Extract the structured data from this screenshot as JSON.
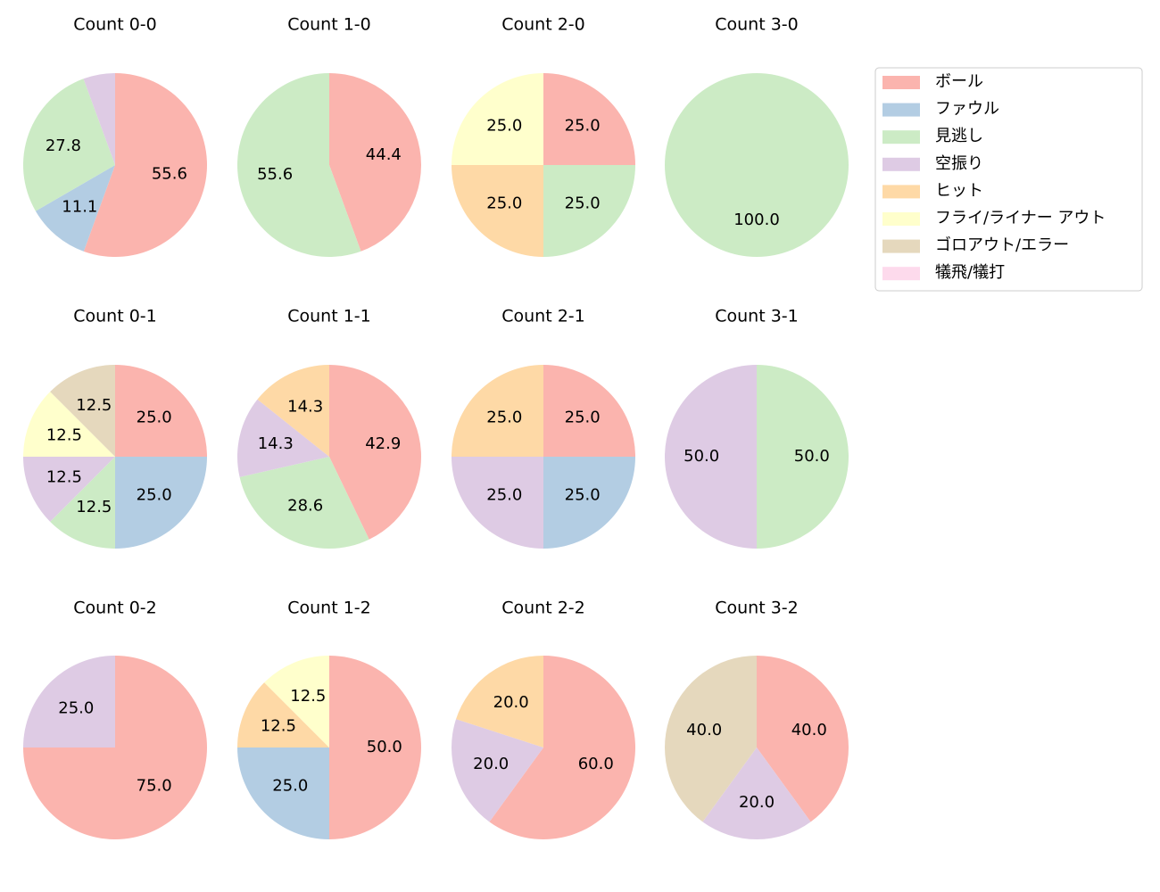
{
  "legend": {
    "labels": [
      "ボール",
      "ファウル",
      "見逃し",
      "空振り",
      "ヒット",
      "フライ/ライナー アウト",
      "ゴロアウト/エラー",
      "犠飛/犠打"
    ],
    "colors": [
      "#fbb4ae",
      "#b3cde3",
      "#ccebc5",
      "#decbe4",
      "#fed9a6",
      "#ffffcc",
      "#e5d8bd",
      "#fddaec"
    ]
  },
  "chart_data": [
    {
      "type": "pie",
      "title": "Count 0-0",
      "categories": [
        "ボール",
        "ファウル",
        "見逃し",
        "空振り"
      ],
      "values": [
        55.6,
        11.1,
        27.8,
        5.6
      ],
      "value_labels": [
        "55.6",
        "11.1",
        "27.8",
        null
      ]
    },
    {
      "type": "pie",
      "title": "Count 1-0",
      "categories": [
        "ボール",
        "見逃し"
      ],
      "values": [
        44.4,
        55.6
      ],
      "value_labels": [
        "44.4",
        "55.6"
      ]
    },
    {
      "type": "pie",
      "title": "Count 2-0",
      "categories": [
        "ボール",
        "見逃し",
        "ヒット",
        "フライ/ライナー アウト"
      ],
      "values": [
        25,
        25,
        25,
        25
      ],
      "value_labels": [
        "25.0",
        "25.0",
        "25.0",
        "25.0"
      ]
    },
    {
      "type": "pie",
      "title": "Count 3-0",
      "categories": [
        "見逃し"
      ],
      "values": [
        100
      ],
      "value_labels": [
        "100.0"
      ]
    },
    {
      "type": "pie",
      "title": "Count 0-1",
      "categories": [
        "ボール",
        "ファウル",
        "見逃し",
        "空振り",
        "フライ/ライナー アウト",
        "ゴロアウト/エラー"
      ],
      "values": [
        25,
        25,
        12.5,
        12.5,
        12.5,
        12.5
      ],
      "value_labels": [
        "25.0",
        "25.0",
        "12.5",
        "12.5",
        "12.5",
        "12.5"
      ]
    },
    {
      "type": "pie",
      "title": "Count 1-1",
      "categories": [
        "ボール",
        "見逃し",
        "空振り",
        "ヒット"
      ],
      "values": [
        42.9,
        28.6,
        14.3,
        14.3
      ],
      "value_labels": [
        "42.9",
        "28.6",
        "14.3",
        "14.3"
      ]
    },
    {
      "type": "pie",
      "title": "Count 2-1",
      "categories": [
        "ボール",
        "ファウル",
        "空振り",
        "ヒット"
      ],
      "values": [
        25,
        25,
        25,
        25
      ],
      "value_labels": [
        "25.0",
        "25.0",
        "25.0",
        "25.0"
      ]
    },
    {
      "type": "pie",
      "title": "Count 3-1",
      "categories": [
        "見逃し",
        "空振り"
      ],
      "values": [
        50,
        50
      ],
      "value_labels": [
        "50.0",
        "50.0"
      ]
    },
    {
      "type": "pie",
      "title": "Count 0-2",
      "categories": [
        "ボール",
        "空振り"
      ],
      "values": [
        75,
        25
      ],
      "value_labels": [
        "75.0",
        "25.0"
      ]
    },
    {
      "type": "pie",
      "title": "Count 1-2",
      "categories": [
        "ボール",
        "ファウル",
        "ヒット",
        "フライ/ライナー アウト"
      ],
      "values": [
        50,
        25,
        12.5,
        12.5
      ],
      "value_labels": [
        "50.0",
        "25.0",
        "12.5",
        "12.5"
      ]
    },
    {
      "type": "pie",
      "title": "Count 2-2",
      "categories": [
        "ボール",
        "空振り",
        "ヒット"
      ],
      "values": [
        60,
        20,
        20
      ],
      "value_labels": [
        "60.0",
        "20.0",
        "20.0"
      ]
    },
    {
      "type": "pie",
      "title": "Count 3-2",
      "categories": [
        "ボール",
        "空振り",
        "ゴロアウト/エラー"
      ],
      "values": [
        40,
        20,
        40
      ],
      "value_labels": [
        "40.0",
        "20.0",
        "40.0"
      ]
    }
  ]
}
